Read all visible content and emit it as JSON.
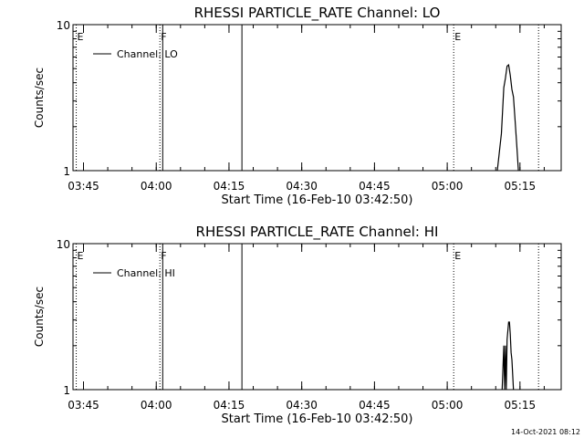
{
  "colors": {
    "background": "#ffffff",
    "foreground": "#000000"
  },
  "footer_timestamp": "14-Oct-2021 08:12",
  "chart_data": [
    {
      "type": "line",
      "title": "RHESSI PARTICLE_RATE Channel: LO",
      "xlabel": "Start Time (16-Feb-10 03:42:50)",
      "ylabel": "Counts/sec",
      "y_scale": "log",
      "ylim": [
        1,
        10
      ],
      "y_ticks": [
        {
          "value": 1,
          "label": "1"
        },
        {
          "value": 10,
          "label": "10"
        }
      ],
      "xlim": [
        "03:42:50",
        "05:23:30"
      ],
      "x_ticks": [
        "03:45",
        "04:00",
        "04:15",
        "04:30",
        "04:45",
        "05:00",
        "05:15"
      ],
      "legend": {
        "placement": "top-left",
        "label": "Channel: LO"
      },
      "markers": [
        {
          "time": "03:43:30",
          "label": "E",
          "style": "dotted"
        },
        {
          "time": "04:00:45",
          "label": "F",
          "style": "dotted"
        },
        {
          "time": "04:01:20",
          "label": "",
          "style": "solid"
        },
        {
          "time": "04:17:40",
          "label": "",
          "style": "solid"
        },
        {
          "time": "05:01:20",
          "label": "E",
          "style": "dotted"
        },
        {
          "time": "05:18:50",
          "label": "",
          "style": "dotted"
        }
      ],
      "series": [
        {
          "x": [
            "05:10:20",
            "05:11:10",
            "05:11:40",
            "05:12:00",
            "05:12:20",
            "05:12:40",
            "05:13:00",
            "05:13:20",
            "05:13:40",
            "05:14:00",
            "05:14:20",
            "05:14:40"
          ],
          "y": [
            1.0,
            1.8,
            3.7,
            4.3,
            5.2,
            5.3,
            4.5,
            3.6,
            3.2,
            2.2,
            1.5,
            1.0
          ]
        }
      ]
    },
    {
      "type": "line",
      "title": "RHESSI PARTICLE_RATE Channel: HI",
      "xlabel": "Start Time (16-Feb-10 03:42:50)",
      "ylabel": "Counts/sec",
      "y_scale": "log",
      "ylim": [
        1,
        10
      ],
      "y_ticks": [
        {
          "value": 1,
          "label": "1"
        },
        {
          "value": 10,
          "label": "10"
        }
      ],
      "xlim": [
        "03:42:50",
        "05:23:30"
      ],
      "x_ticks": [
        "03:45",
        "04:00",
        "04:15",
        "04:30",
        "04:45",
        "05:00",
        "05:15"
      ],
      "legend": {
        "placement": "top-left",
        "label": "Channel: HI"
      },
      "markers": [
        {
          "time": "03:43:30",
          "label": "E",
          "style": "dotted"
        },
        {
          "time": "04:00:45",
          "label": "F",
          "style": "dotted"
        },
        {
          "time": "04:01:20",
          "label": "",
          "style": "solid"
        },
        {
          "time": "04:17:40",
          "label": "",
          "style": "solid"
        },
        {
          "time": "05:01:20",
          "label": "E",
          "style": "dotted"
        },
        {
          "time": "05:18:50",
          "label": "",
          "style": "dotted"
        }
      ],
      "series": [
        {
          "x": [
            "05:11:20",
            "05:11:40",
            "05:11:50",
            "05:12:00",
            "05:12:10",
            "05:12:20",
            "05:12:40",
            "05:12:50",
            "05:13:00",
            "05:13:10",
            "05:13:20",
            "05:13:40"
          ],
          "y": [
            1.0,
            2.0,
            1.0,
            2.0,
            1.0,
            2.2,
            2.9,
            2.9,
            2.4,
            1.8,
            1.6,
            1.0
          ]
        }
      ]
    }
  ]
}
